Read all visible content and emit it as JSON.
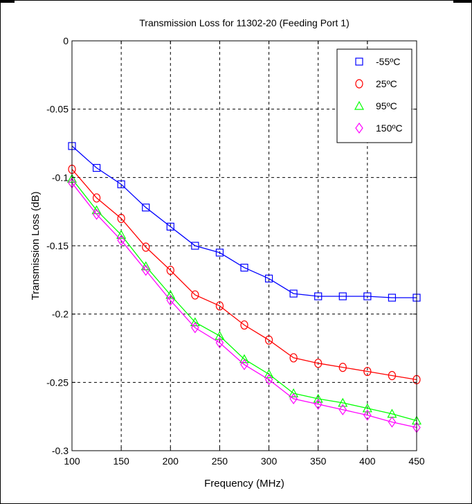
{
  "chart_data": {
    "type": "line",
    "title": "Transmission Loss for 11302-20 (Feeding Port 1)",
    "xlabel": "Frequency (MHz)",
    "ylabel": "Transmission Loss (dB)",
    "xlim": [
      100,
      450
    ],
    "ylim": [
      -0.3,
      0
    ],
    "xticks": [
      100,
      150,
      200,
      250,
      300,
      350,
      400,
      450
    ],
    "yticks": [
      0,
      -0.05,
      -0.1,
      -0.15,
      -0.2,
      -0.25,
      -0.3
    ],
    "xtick_labels": [
      "100",
      "150",
      "200",
      "250",
      "300",
      "350",
      "400",
      "450"
    ],
    "ytick_labels": [
      "0",
      "-0.05",
      "-0.1",
      "-0.15",
      "-0.2",
      "-0.25",
      "-0.3"
    ],
    "grid": true,
    "legend_position": "top-right",
    "x": [
      100,
      125,
      150,
      175,
      200,
      225,
      250,
      275,
      300,
      325,
      350,
      375,
      400,
      425,
      450
    ],
    "series": [
      {
        "name": "-55ºC",
        "color": "#0000ff",
        "marker": "square",
        "values": [
          -0.077,
          -0.093,
          -0.105,
          -0.122,
          -0.136,
          -0.15,
          -0.155,
          -0.166,
          -0.174,
          -0.185,
          -0.187,
          -0.187,
          -0.187,
          -0.188,
          -0.188
        ]
      },
      {
        "name": "25ºC",
        "color": "#ff0000",
        "marker": "circle",
        "values": [
          -0.094,
          -0.115,
          -0.13,
          -0.151,
          -0.168,
          -0.186,
          -0.194,
          -0.208,
          -0.219,
          -0.232,
          -0.236,
          -0.239,
          -0.242,
          -0.245,
          -0.248
        ]
      },
      {
        "name": "95ºC",
        "color": "#00ff00",
        "marker": "triangle",
        "values": [
          -0.101,
          -0.124,
          -0.142,
          -0.165,
          -0.186,
          -0.206,
          -0.216,
          -0.233,
          -0.244,
          -0.258,
          -0.262,
          -0.265,
          -0.269,
          -0.273,
          -0.278
        ]
      },
      {
        "name": "150ºC",
        "color": "#ff00ff",
        "marker": "diamond",
        "values": [
          -0.104,
          -0.127,
          -0.146,
          -0.168,
          -0.19,
          -0.21,
          -0.221,
          -0.237,
          -0.248,
          -0.262,
          -0.266,
          -0.27,
          -0.274,
          -0.279,
          -0.283
        ]
      }
    ]
  }
}
